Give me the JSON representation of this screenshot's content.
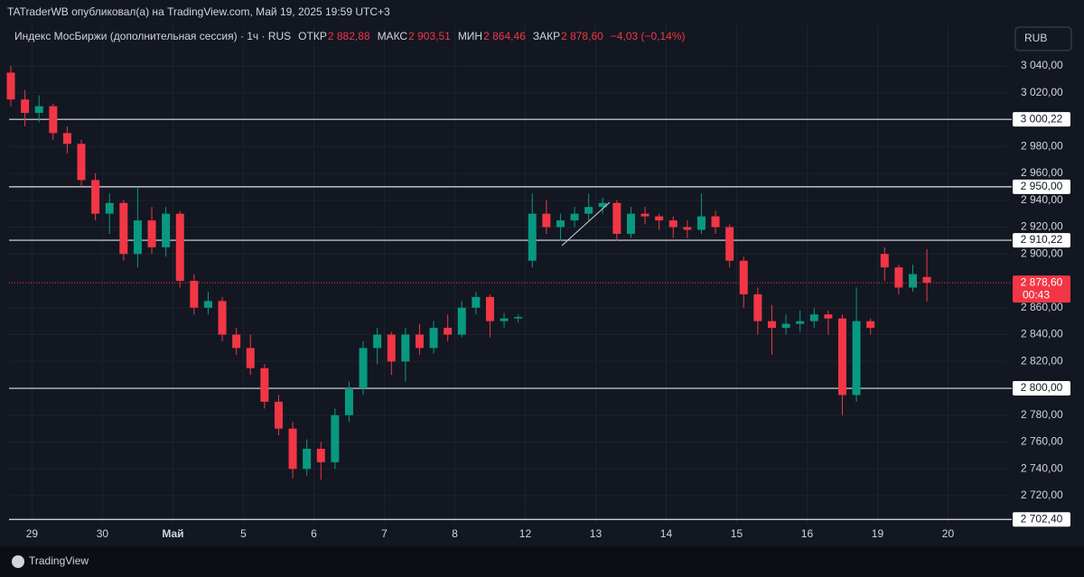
{
  "header": {
    "publisher": "TATraderWB опубликовал(а) на TradingView.com, Май 19, 2025 19:59 UTC+3",
    "symbol": "Индекс МосБиржи (дополнительная сессия) · 1ч · RUS",
    "open_label": "ОТКР",
    "open": "2 882,88",
    "high_label": "МАКС",
    "high": "2 903,51",
    "low_label": "МИН",
    "low": "2 864,46",
    "close_label": "ЗАКР",
    "close": "2 878,60",
    "change": "−4,03 (−0,14%)",
    "currency": "RUB"
  },
  "footer": {
    "brand": "TradingView"
  },
  "chart_data": {
    "type": "candlestick",
    "up_color": "#089981",
    "down_color": "#f23645",
    "grid": true,
    "xlim": [
      -0.13,
      70.7
    ],
    "ylim": [
      2699.2,
      3070.25
    ],
    "xticks": [
      {
        "value": 1.5,
        "label": "29"
      },
      {
        "value": 6.5,
        "label": "30"
      },
      {
        "value": 11.5,
        "label": "Май"
      },
      {
        "value": 16.5,
        "label": "5"
      },
      {
        "value": 21.5,
        "label": "6"
      },
      {
        "value": 26.5,
        "label": "7"
      },
      {
        "value": 31.5,
        "label": "8"
      },
      {
        "value": 36.5,
        "label": "12"
      },
      {
        "value": 41.5,
        "label": "13"
      },
      {
        "value": 46.5,
        "label": "14"
      },
      {
        "value": 51.5,
        "label": "15"
      },
      {
        "value": 56.5,
        "label": "16"
      },
      {
        "value": 61.5,
        "label": "19"
      },
      {
        "value": 66.5,
        "label": "20"
      }
    ],
    "yticks": [
      {
        "value": 3040,
        "label": "3 040,00"
      },
      {
        "value": 3020,
        "label": "3 020,00"
      },
      {
        "value": 2980,
        "label": "2 980,00"
      },
      {
        "value": 2960,
        "label": "2 960,00"
      },
      {
        "value": 2940,
        "label": "2 940,00"
      },
      {
        "value": 2920,
        "label": "2 920,00"
      },
      {
        "value": 2900,
        "label": "2 900,00"
      },
      {
        "value": 2860,
        "label": "2 860,00"
      },
      {
        "value": 2840,
        "label": "2 840,00"
      },
      {
        "value": 2820,
        "label": "2 820,00"
      },
      {
        "value": 2780,
        "label": "2 780,00"
      },
      {
        "value": 2760,
        "label": "2 760,00"
      },
      {
        "value": 2740,
        "label": "2 740,00"
      },
      {
        "value": 2720,
        "label": "2 720,00"
      }
    ],
    "levels": [
      {
        "value": 3000.22,
        "label": "3 000,22"
      },
      {
        "value": 2950,
        "label": "2 950,00"
      },
      {
        "value": 2910.22,
        "label": "2 910,22"
      },
      {
        "value": 2800,
        "label": "2 800,00"
      },
      {
        "value": 2702.4,
        "label": "2 702,40"
      }
    ],
    "last_price": {
      "value": 2878.6,
      "label": "2 878,60",
      "countdown": "00:43"
    },
    "open": [
      3035,
      3015,
      3005,
      3010,
      2990,
      2982,
      2955,
      2930,
      2938,
      2900,
      2925,
      2905,
      2930,
      2880,
      2860,
      2865,
      2840,
      2830,
      2815,
      2790,
      2770,
      2740,
      2755,
      2745,
      2780,
      2800,
      2830,
      2840,
      2820,
      2840,
      2830,
      2845,
      2840,
      2860,
      2868,
      2850,
      2852,
      2895,
      2930,
      2920,
      2925,
      2930,
      2935,
      2938,
      2915,
      2930,
      2928,
      2925,
      2920,
      2918,
      2928,
      2920,
      2895,
      2870,
      2850,
      2845,
      2848,
      2850,
      2855,
      2852,
      2795,
      2850,
      2900,
      2890,
      2875,
      2882.88
    ],
    "high": [
      3040,
      3022,
      3018,
      3012,
      2995,
      2985,
      2960,
      2945,
      2940,
      2950,
      2935,
      2935,
      2932,
      2885,
      2872,
      2868,
      2845,
      2840,
      2818,
      2795,
      2775,
      2762,
      2760,
      2785,
      2805,
      2835,
      2845,
      2842,
      2845,
      2848,
      2850,
      2855,
      2865,
      2872,
      2870,
      2856,
      2855,
      2945,
      2940,
      2930,
      2935,
      2945,
      2942,
      2940,
      2935,
      2935,
      2930,
      2928,
      2925,
      2945,
      2932,
      2922,
      2898,
      2875,
      2862,
      2855,
      2858,
      2860,
      2858,
      2855,
      2875,
      2852,
      2905,
      2892,
      2892,
      2903.51
    ],
    "low": [
      3010,
      2995,
      2998,
      2985,
      2975,
      2950,
      2925,
      2915,
      2895,
      2890,
      2900,
      2898,
      2875,
      2855,
      2855,
      2835,
      2825,
      2810,
      2785,
      2765,
      2733,
      2735,
      2732,
      2740,
      2775,
      2795,
      2818,
      2810,
      2805,
      2825,
      2826,
      2835,
      2838,
      2855,
      2838,
      2845,
      2849,
      2890,
      2915,
      2910,
      2920,
      2925,
      2930,
      2910,
      2912,
      2922,
      2918,
      2912,
      2912,
      2915,
      2915,
      2890,
      2860,
      2840,
      2825,
      2840,
      2842,
      2845,
      2840,
      2780,
      2790,
      2840,
      2880,
      2870,
      2872,
      2864.46
    ],
    "close": [
      3015,
      3005,
      3010,
      2990,
      2982,
      2955,
      2930,
      2938,
      2900,
      2925,
      2905,
      2930,
      2880,
      2860,
      2865,
      2840,
      2830,
      2815,
      2790,
      2770,
      2740,
      2755,
      2745,
      2780,
      2800,
      2830,
      2840,
      2820,
      2840,
      2830,
      2845,
      2840,
      2860,
      2868,
      2850,
      2852,
      2853,
      2930,
      2920,
      2925,
      2930,
      2935,
      2938,
      2915,
      2930,
      2928,
      2925,
      2920,
      2918,
      2928,
      2920,
      2895,
      2870,
      2850,
      2845,
      2848,
      2850,
      2855,
      2852,
      2795,
      2850,
      2845,
      2890,
      2875,
      2885,
      2878.6
    ]
  }
}
